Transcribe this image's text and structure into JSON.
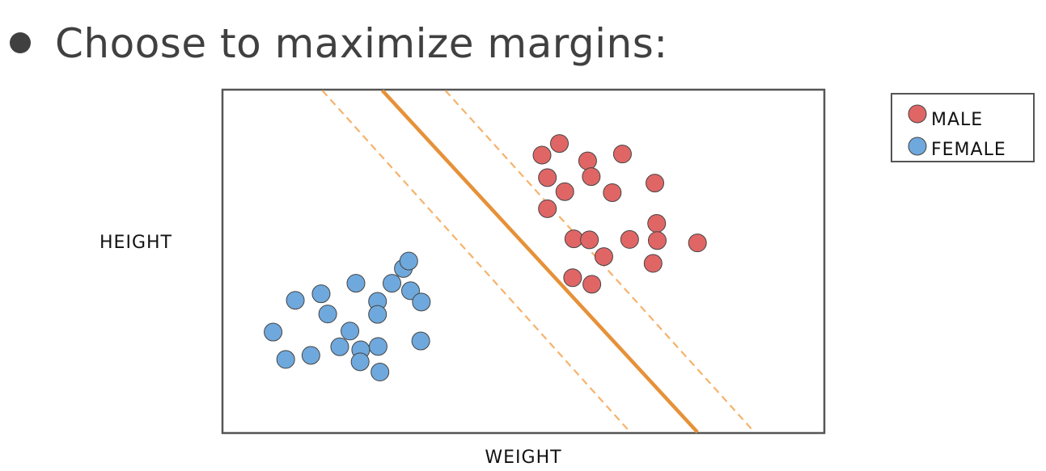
{
  "heading": {
    "text": "Choose to maximize margins:"
  },
  "chart_data": {
    "type": "scatter",
    "title": "",
    "xlabel": "WEIGHT",
    "ylabel": "HEIGHT",
    "xlim": [
      0,
      100
    ],
    "ylim": [
      0,
      100
    ],
    "grid": false,
    "ticks": false,
    "legend_position": "top-right-outside",
    "series": [
      {
        "name": "MALE",
        "color": "#e06666",
        "points": [
          [
            56.0,
            84.5
          ],
          [
            53.1,
            81.1
          ],
          [
            60.7,
            79.4
          ],
          [
            54.0,
            74.5
          ],
          [
            61.3,
            74.8
          ],
          [
            66.5,
            81.4
          ],
          [
            56.9,
            70.4
          ],
          [
            71.9,
            72.9
          ],
          [
            64.8,
            70.1
          ],
          [
            54.0,
            65.4
          ],
          [
            72.2,
            61.1
          ],
          [
            58.4,
            56.6
          ],
          [
            67.7,
            56.4
          ],
          [
            61.0,
            56.3
          ],
          [
            79.0,
            55.4
          ],
          [
            72.3,
            56.1
          ],
          [
            63.4,
            51.4
          ],
          [
            71.6,
            49.4
          ],
          [
            58.2,
            45.2
          ],
          [
            61.4,
            43.3
          ]
        ]
      },
      {
        "name": "FEMALE",
        "color": "#6fa8dc",
        "points": [
          [
            31.2,
            41.4
          ],
          [
            25.7,
            38.3
          ],
          [
            33.0,
            38.1
          ],
          [
            30.0,
            47.9
          ],
          [
            22.1,
            43.6
          ],
          [
            30.9,
            50.1
          ],
          [
            28.1,
            43.6
          ],
          [
            25.7,
            34.5
          ],
          [
            17.4,
            34.6
          ],
          [
            16.3,
            40.5
          ],
          [
            21.1,
            29.6
          ],
          [
            12.0,
            38.6
          ],
          [
            8.3,
            29.3
          ],
          [
            19.4,
            25.0
          ],
          [
            14.6,
            22.5
          ],
          [
            32.9,
            26.7
          ],
          [
            25.8,
            25.1
          ],
          [
            22.9,
            24.1
          ],
          [
            10.4,
            21.3
          ],
          [
            26.1,
            17.6
          ],
          [
            22.8,
            20.6
          ]
        ]
      }
    ],
    "lines": [
      {
        "role": "decision-boundary",
        "style": "solid",
        "color": "#e69138",
        "points": [
          [
            26.5,
            100
          ],
          [
            79.0,
            0
          ]
        ]
      },
      {
        "role": "margin-lower",
        "style": "dashed",
        "color": "#f6b26b",
        "points": [
          [
            16.5,
            100
          ],
          [
            67.8,
            0
          ]
        ]
      },
      {
        "role": "margin-upper",
        "style": "dashed",
        "color": "#f6b26b",
        "points": [
          [
            37.0,
            100
          ],
          [
            88.5,
            0
          ]
        ]
      }
    ]
  }
}
